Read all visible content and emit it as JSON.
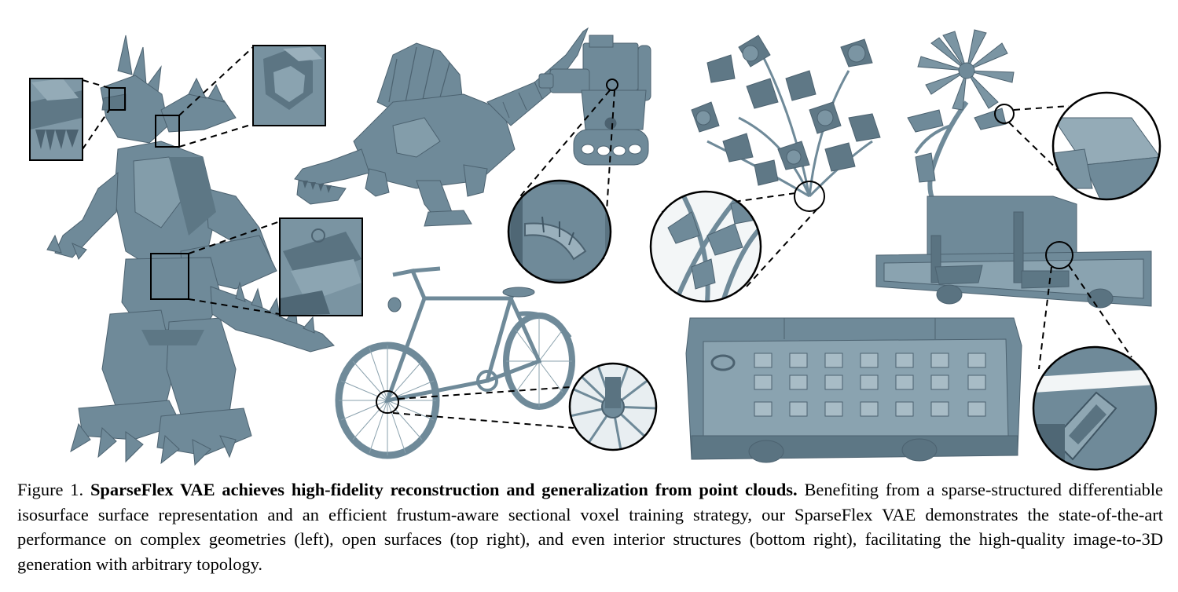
{
  "figure": {
    "model_color": "#6f8a99",
    "model_shadow": "#4c6270",
    "model_highlight": "#9fb5c1",
    "objects": [
      "robot-godzilla-model",
      "mechanical-spinosaurus-model",
      "tracked-robot-model",
      "bicycle-model",
      "flower-bush-model",
      "single-flower-model",
      "cutaway-van-model",
      "cutaway-bus-model"
    ]
  },
  "caption": {
    "label": "Figure 1.",
    "title": "SparseFlex VAE achieves high-fidelity reconstruction and generalization from point clouds.",
    "body": "Benefiting from a sparse-structured differentiable isosurface surface representation and an efficient frustum-aware sectional voxel training strategy, our SparseFlex VAE demonstrates the state-of-the-art performance on complex geometries (left), open surfaces (top right), and even interior structures (bottom right), facilitating the high-quality image-to-3D generation with arbitrary topology."
  }
}
